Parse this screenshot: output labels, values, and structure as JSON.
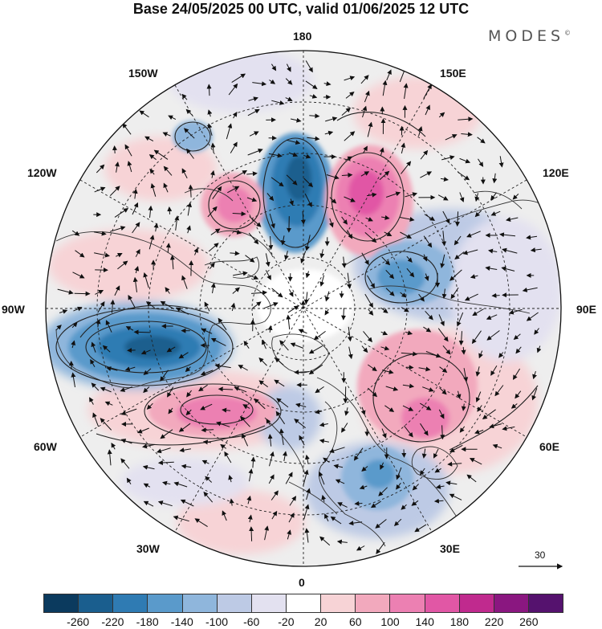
{
  "title": "Base 24/05/2025 00 UTC, valid 01/06/2025 12 UTC",
  "brand": "MODES",
  "brand_mark": "©",
  "longitude_labels": {
    "lon_180": "180",
    "lon_150E": "150E",
    "lon_120E": "120E",
    "lon_90E": "90E",
    "lon_60E": "60E",
    "lon_30E": "30E",
    "lon_0": "0",
    "lon_30W": "30W",
    "lon_60W": "60W",
    "lon_90W": "90W",
    "lon_120W": "120W",
    "lon_150W": "150W"
  },
  "reference_vector_label": "30",
  "colorbar": {
    "ticks": [
      "-260",
      "-220",
      "-180",
      "-140",
      "-100",
      "-60",
      "-20",
      "20",
      "60",
      "100",
      "140",
      "180",
      "220",
      "260"
    ],
    "colors": [
      "#0b3a5e",
      "#1a5e8e",
      "#2f7bb3",
      "#5a9acb",
      "#8fb6dc",
      "#bdcae5",
      "#e3e1f0",
      "#ffffff",
      "#f7d3d6",
      "#f2a9bd",
      "#ec80b2",
      "#e157a5",
      "#c02a8e",
      "#8a1780",
      "#55126e"
    ]
  },
  "map": {
    "projection": "north-polar-stereographic",
    "field": "geopotential height anomaly with wind vectors",
    "anomalies": [
      {
        "color": "#ec80b2",
        "kind": "positive"
      },
      {
        "color": "#2f7bb3",
        "kind": "negative"
      },
      {
        "color": "#e157a5",
        "kind": "positive"
      },
      {
        "color": "#5a9acb",
        "kind": "negative"
      },
      {
        "color": "#f2a9bd",
        "kind": "positive"
      }
    ]
  }
}
